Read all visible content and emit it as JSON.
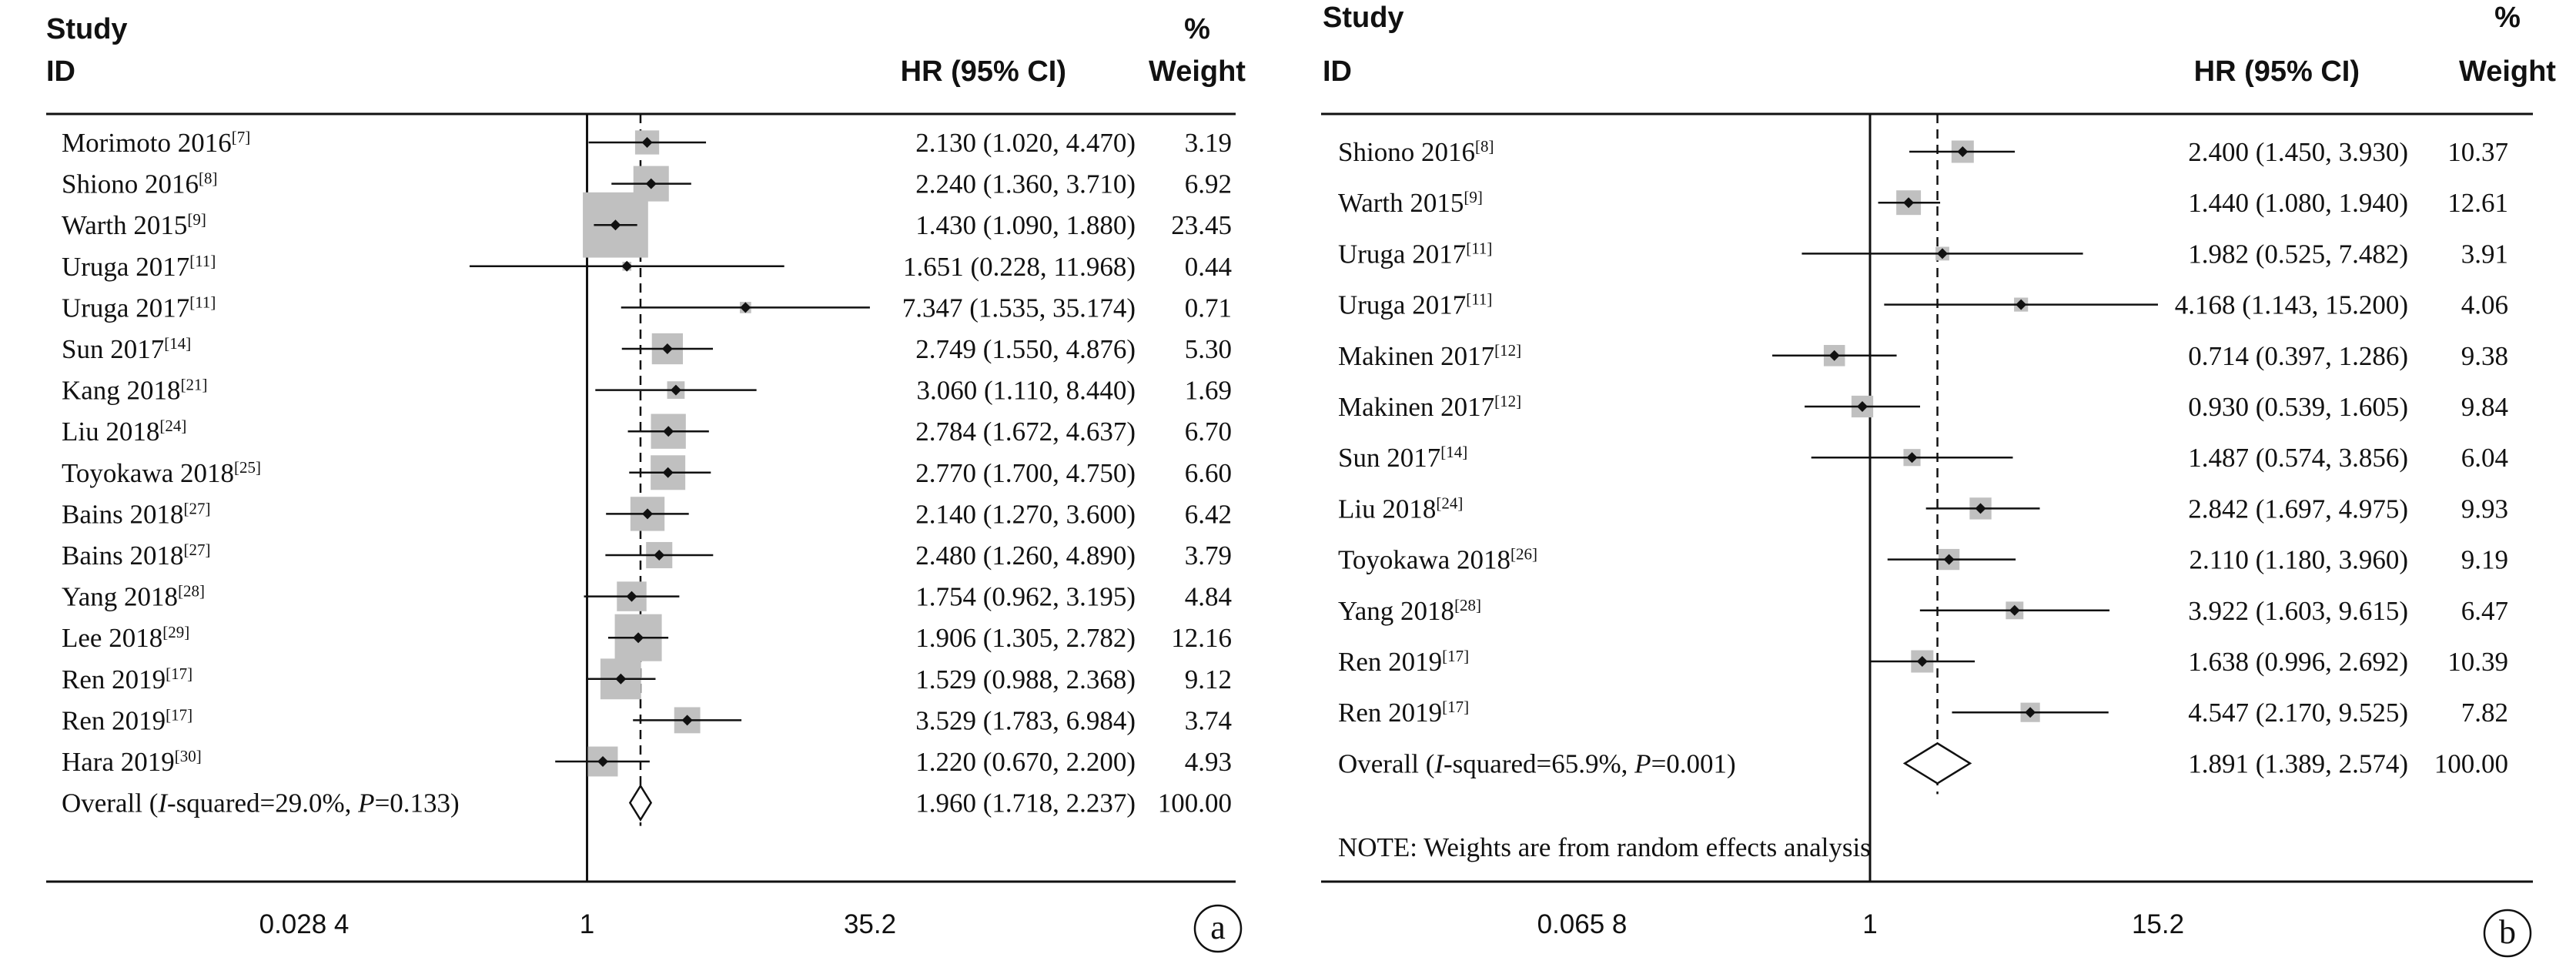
{
  "chart_data": [
    {
      "type": "forest",
      "panel_label": "a",
      "header": {
        "study_line1": "Study",
        "study_line2": "ID",
        "hr_label": "HR (95% CI)",
        "weight_line1": "%",
        "weight_line2": "Weight"
      },
      "x_scale": "log",
      "xlim": [
        0.0284,
        35.2
      ],
      "x_ticks": [
        {
          "value": 0.0284,
          "label": "0.028 4"
        },
        {
          "value": 1,
          "label": "1"
        },
        {
          "value": 35.2,
          "label": "35.2"
        }
      ],
      "reference_line": 1,
      "pooled_line": 1.96,
      "studies": [
        {
          "name": "Morimoto 2016",
          "ref": "[7]",
          "hr": 2.13,
          "lo": 1.02,
          "hi": 4.47,
          "ci_text": "2.130 (1.020, 4.470)",
          "weight": 3.19,
          "weight_text": "3.19"
        },
        {
          "name": "Shiono 2016",
          "ref": "[8]",
          "hr": 2.24,
          "lo": 1.36,
          "hi": 3.71,
          "ci_text": "2.240 (1.360, 3.710)",
          "weight": 6.92,
          "weight_text": "6.92"
        },
        {
          "name": "Warth 2015",
          "ref": "[9]",
          "hr": 1.43,
          "lo": 1.09,
          "hi": 1.88,
          "ci_text": "1.430 (1.090, 1.880)",
          "weight": 23.45,
          "weight_text": "23.45"
        },
        {
          "name": "Uruga 2017",
          "ref": "[11]",
          "hr": 1.651,
          "lo": 0.228,
          "hi": 11.968,
          "ci_text": "1.651 (0.228, 11.968)",
          "weight": 0.44,
          "weight_text": "0.44"
        },
        {
          "name": "Uruga 2017",
          "ref": "[11]",
          "hr": 7.347,
          "lo": 1.535,
          "hi": 35.174,
          "ci_text": "7.347 (1.535, 35.174)",
          "weight": 0.71,
          "weight_text": "0.71"
        },
        {
          "name": "Sun 2017",
          "ref": "[14]",
          "hr": 2.749,
          "lo": 1.55,
          "hi": 4.876,
          "ci_text": "2.749 (1.550, 4.876)",
          "weight": 5.3,
          "weight_text": "5.30"
        },
        {
          "name": "Kang 2018",
          "ref": "[21]",
          "hr": 3.06,
          "lo": 1.11,
          "hi": 8.44,
          "ci_text": "3.060 (1.110, 8.440)",
          "weight": 1.69,
          "weight_text": "1.69"
        },
        {
          "name": "Liu 2018",
          "ref": "[24]",
          "hr": 2.784,
          "lo": 1.672,
          "hi": 4.637,
          "ci_text": "2.784 (1.672, 4.637)",
          "weight": 6.7,
          "weight_text": "6.70"
        },
        {
          "name": "Toyokawa 2018",
          "ref": "[25]",
          "hr": 2.77,
          "lo": 1.7,
          "hi": 4.75,
          "ci_text": "2.770 (1.700, 4.750)",
          "weight": 6.6,
          "weight_text": "6.60"
        },
        {
          "name": "Bains 2018",
          "ref": "[27]",
          "hr": 2.14,
          "lo": 1.27,
          "hi": 3.6,
          "ci_text": "2.140 (1.270, 3.600)",
          "weight": 6.42,
          "weight_text": "6.42"
        },
        {
          "name": "Bains 2018",
          "ref": "[27]",
          "hr": 2.48,
          "lo": 1.26,
          "hi": 4.89,
          "ci_text": "2.480 (1.260, 4.890)",
          "weight": 3.79,
          "weight_text": "3.79"
        },
        {
          "name": "Yang 2018",
          "ref": "[28]",
          "hr": 1.754,
          "lo": 0.962,
          "hi": 3.195,
          "ci_text": "1.754 (0.962, 3.195)",
          "weight": 4.84,
          "weight_text": "4.84"
        },
        {
          "name": "Lee 2018",
          "ref": "[29]",
          "hr": 1.906,
          "lo": 1.305,
          "hi": 2.782,
          "ci_text": "1.906 (1.305, 2.782)",
          "weight": 12.16,
          "weight_text": "12.16"
        },
        {
          "name": "Ren 2019",
          "ref": "[17]",
          "hr": 1.529,
          "lo": 0.988,
          "hi": 2.368,
          "ci_text": "1.529 (0.988, 2.368)",
          "weight": 9.12,
          "weight_text": "9.12"
        },
        {
          "name": "Ren 2019",
          "ref": "[17]",
          "hr": 3.529,
          "lo": 1.783,
          "hi": 6.984,
          "ci_text": "3.529 (1.783, 6.984)",
          "weight": 3.74,
          "weight_text": "3.74"
        },
        {
          "name": "Hara 2019",
          "ref": "[30]",
          "hr": 1.22,
          "lo": 0.67,
          "hi": 2.2,
          "ci_text": "1.220 (0.670, 2.200)",
          "weight": 4.93,
          "weight_text": "4.93"
        }
      ],
      "overall": {
        "label_prefix": "Overall  (",
        "label_i": "I",
        "label_mid": "-squared=29.0%, ",
        "label_p": "P",
        "label_end": "=0.133)",
        "hr": 1.96,
        "lo": 1.718,
        "hi": 2.237,
        "ci_text": "1.960 (1.718, 2.237)",
        "weight_text": "100.00"
      },
      "note": ""
    },
    {
      "type": "forest",
      "panel_label": "b",
      "header": {
        "study_line1": "Study",
        "study_line2": "ID",
        "hr_label": "HR (95% CI)",
        "weight_line1": "%",
        "weight_line2": "Weight"
      },
      "x_scale": "log",
      "xlim": [
        0.0658,
        15.2
      ],
      "x_ticks": [
        {
          "value": 0.0658,
          "label": "0.065 8"
        },
        {
          "value": 1,
          "label": "1"
        },
        {
          "value": 15.2,
          "label": "15.2"
        }
      ],
      "reference_line": 1,
      "pooled_line": 1.891,
      "studies": [
        {
          "name": "Shiono 2016",
          "ref": "[8]",
          "hr": 2.4,
          "lo": 1.45,
          "hi": 3.93,
          "ci_text": "2.400 (1.450, 3.930)",
          "weight": 10.37,
          "weight_text": "10.37"
        },
        {
          "name": "Warth 2015",
          "ref": "[9]",
          "hr": 1.44,
          "lo": 1.08,
          "hi": 1.94,
          "ci_text": "1.440 (1.080, 1.940)",
          "weight": 12.61,
          "weight_text": "12.61"
        },
        {
          "name": "Uruga 2017",
          "ref": "[11]",
          "hr": 1.982,
          "lo": 0.525,
          "hi": 7.482,
          "ci_text": "1.982 (0.525, 7.482)",
          "weight": 3.91,
          "weight_text": "3.91"
        },
        {
          "name": "Uruga 2017",
          "ref": "[11]",
          "hr": 4.168,
          "lo": 1.143,
          "hi": 15.2,
          "ci_text": "4.168 (1.143, 15.200)",
          "weight": 4.06,
          "weight_text": "4.06"
        },
        {
          "name": "Makinen 2017",
          "ref": "[12]",
          "hr": 0.714,
          "lo": 0.397,
          "hi": 1.286,
          "ci_text": "0.714 (0.397, 1.286)",
          "weight": 9.38,
          "weight_text": "9.38"
        },
        {
          "name": "Makinen 2017",
          "ref": "[12]",
          "hr": 0.93,
          "lo": 0.539,
          "hi": 1.605,
          "ci_text": "0.930 (0.539, 1.605)",
          "weight": 9.84,
          "weight_text": "9.84"
        },
        {
          "name": "Sun 2017",
          "ref": "[14]",
          "hr": 1.487,
          "lo": 0.574,
          "hi": 3.856,
          "ci_text": "1.487 (0.574, 3.856)",
          "weight": 6.04,
          "weight_text": "6.04"
        },
        {
          "name": "Liu 2018",
          "ref": "[24]",
          "hr": 2.842,
          "lo": 1.697,
          "hi": 4.975,
          "ci_text": "2.842 (1.697, 4.975)",
          "weight": 9.93,
          "weight_text": "9.93"
        },
        {
          "name": "Toyokawa 2018",
          "ref": "[26]",
          "hr": 2.11,
          "lo": 1.18,
          "hi": 3.96,
          "ci_text": "2.110 (1.180, 3.960)",
          "weight": 9.19,
          "weight_text": "9.19"
        },
        {
          "name": "Yang 2018",
          "ref": "[28]",
          "hr": 3.922,
          "lo": 1.603,
          "hi": 9.615,
          "ci_text": "3.922 (1.603, 9.615)",
          "weight": 6.47,
          "weight_text": "6.47"
        },
        {
          "name": "Ren 2019",
          "ref": "[17]",
          "hr": 1.638,
          "lo": 0.996,
          "hi": 2.692,
          "ci_text": "1.638 (0.996, 2.692)",
          "weight": 10.39,
          "weight_text": "10.39"
        },
        {
          "name": "Ren 2019",
          "ref": "[17]",
          "hr": 4.547,
          "lo": 2.17,
          "hi": 9.525,
          "ci_text": "4.547 (2.170, 9.525)",
          "weight": 7.82,
          "weight_text": "7.82"
        }
      ],
      "overall": {
        "label_prefix": "Overall  (",
        "label_i": "I",
        "label_mid": "-squared=65.9%, ",
        "label_p": "P",
        "label_end": "=0.001)",
        "hr": 1.891,
        "lo": 1.389,
        "hi": 2.574,
        "ci_text": "1.891 (1.389, 2.574)",
        "weight_text": "100.00"
      },
      "note": "NOTE: Weights are from random effects analysis"
    }
  ],
  "colors": {
    "ink": "#111111",
    "box_fill": "#c0c0c0",
    "background": "#ffffff"
  }
}
